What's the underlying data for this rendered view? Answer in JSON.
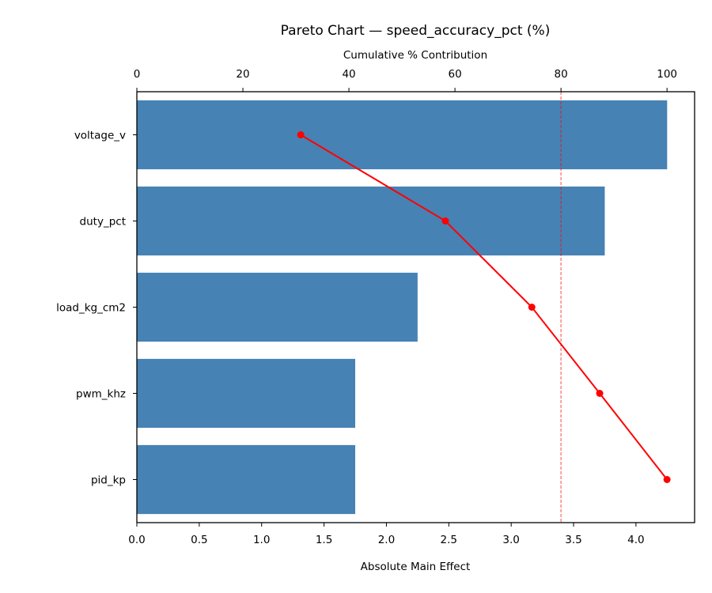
{
  "chart_data": {
    "type": "bar",
    "orientation": "horizontal",
    "title": "Pareto Chart — speed_accuracy_pct (%)",
    "xlabel": "Absolute Main Effect",
    "ylabel": "",
    "secondary_xlabel": "Cumulative % Contribution",
    "categories": [
      "voltage_v",
      "duty_pct",
      "load_kg_cm2",
      "pwm_khz",
      "pid_kp"
    ],
    "series": [
      {
        "name": "Absolute Main Effect",
        "type": "bar",
        "color": "#4682b4",
        "values": [
          4.25,
          3.75,
          2.25,
          1.75,
          1.75
        ]
      },
      {
        "name": "Cumulative % Contribution",
        "type": "line",
        "color": "#ff0000",
        "axis": "top",
        "values": [
          30.9,
          58.2,
          74.5,
          87.3,
          100.0
        ]
      }
    ],
    "xlim": [
      0,
      4.47
    ],
    "secondary_xlim": [
      0,
      105.2
    ],
    "xticks": [
      "0.0",
      "0.5",
      "1.0",
      "1.5",
      "2.0",
      "2.5",
      "3.0",
      "3.5",
      "4.0"
    ],
    "secondary_xticks": [
      "0",
      "20",
      "40",
      "60",
      "80",
      "100"
    ],
    "reference_line": {
      "axis": "top",
      "value": 80,
      "style": "dashed",
      "color": "#ff0000",
      "alpha": 0.6
    },
    "grid": false,
    "legend": null
  }
}
